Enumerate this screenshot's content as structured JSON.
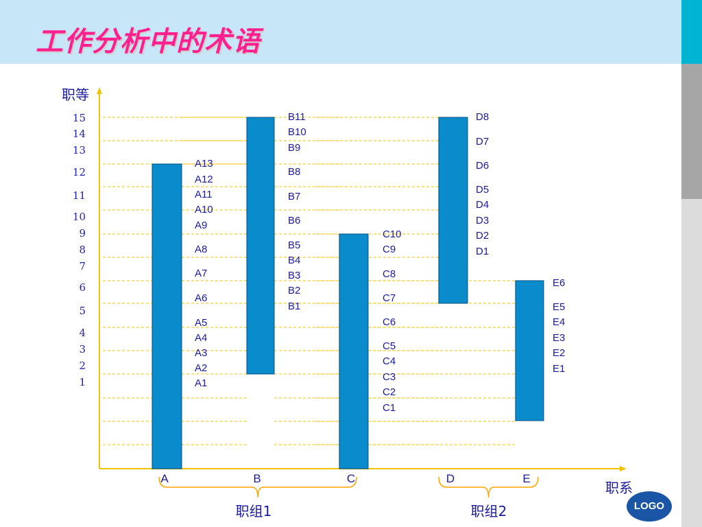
{
  "slide": {
    "title": "工作分析中的术语"
  },
  "axes": {
    "y_label": "职等",
    "x_label": "职系"
  },
  "grades": [
    "15",
    "14",
    "13",
    "12",
    "11",
    "10",
    "9",
    "8",
    "7",
    "6",
    "5",
    "4",
    "3",
    "2",
    "1"
  ],
  "columns": [
    {
      "id": "A",
      "label": "A",
      "levels": [
        "A13",
        "A12",
        "A11",
        "A10",
        "A9",
        "A8",
        "A7",
        "A6",
        "A5",
        "A4",
        "A3",
        "A2",
        "A1"
      ]
    },
    {
      "id": "B",
      "label": "B",
      "levels": [
        "B11",
        "B10",
        "B9",
        "B8",
        "B7",
        "B6",
        "B5",
        "B4",
        "B3",
        "B2",
        "B1"
      ]
    },
    {
      "id": "C",
      "label": "C",
      "levels": [
        "C10",
        "C9",
        "C8",
        "C7",
        "C6",
        "C5",
        "C4",
        "C3",
        "C2",
        "C1"
      ]
    },
    {
      "id": "D",
      "label": "D",
      "levels": [
        "D8",
        "D7",
        "D6",
        "D5",
        "D4",
        "D3",
        "D2",
        "D1"
      ]
    },
    {
      "id": "E",
      "label": "E",
      "levels": [
        "E6",
        "E5",
        "E4",
        "E3",
        "E2",
        "E1"
      ]
    }
  ],
  "groups": [
    {
      "label": "职组1"
    },
    {
      "label": "职组2"
    }
  ],
  "logo": {
    "text": "LOGO"
  },
  "colors": {
    "bar": "#0a8ccc",
    "title": "#ff1f8f",
    "header": "#c7e6f8",
    "axis": "#f2c200",
    "axis_text": "#1a1aa0",
    "grade_text": "#2222aa",
    "brace": "#ffa500"
  }
}
